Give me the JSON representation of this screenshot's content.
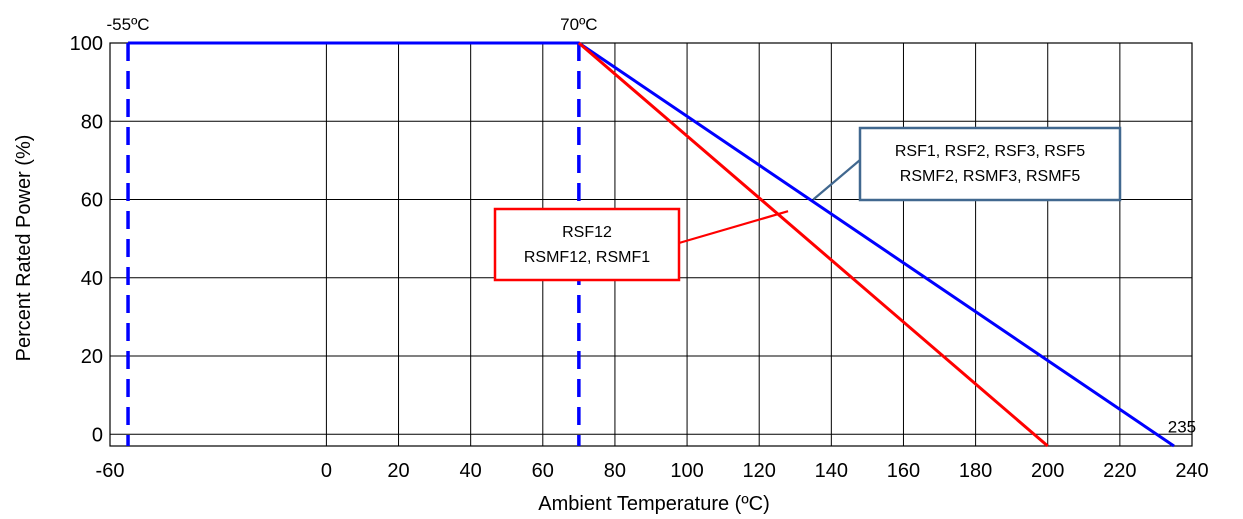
{
  "chart_data": {
    "type": "line",
    "xlabel": "Ambient Temperature (ºC)",
    "ylabel": "Percent Rated Power (%)",
    "xlim": [
      -60,
      240
    ],
    "ylim": [
      -3,
      100
    ],
    "x_ticks": [
      -60,
      0,
      20,
      40,
      60,
      80,
      100,
      120,
      140,
      160,
      180,
      200,
      220,
      240
    ],
    "x_tick_labels": [
      "-60",
      "0",
      "20",
      "40",
      "60",
      "80",
      "100",
      "120",
      "140",
      "160",
      "180",
      "200",
      "220",
      "240"
    ],
    "y_ticks": [
      0,
      20,
      40,
      60,
      80,
      100
    ],
    "y_tick_labels": [
      "0",
      "20",
      "40",
      "60",
      "80",
      "100"
    ],
    "grid": true,
    "series": [
      {
        "name": "RSF1, RSF2, RSF3, RSF5 RSMF2, RSMF3, RSMF5",
        "color": "#0000ff",
        "points": [
          [
            -55,
            100
          ],
          [
            70,
            100
          ],
          [
            235,
            -3
          ]
        ]
      },
      {
        "name": "RSF12 RSMF12, RSMF1",
        "color": "#ff0000",
        "points": [
          [
            70,
            100
          ],
          [
            200,
            -3
          ]
        ]
      }
    ],
    "reference_lines": [
      {
        "x": -55,
        "label": "-55ºC",
        "color": "#0000ff",
        "style": "dashed"
      },
      {
        "x": 70,
        "label": "70ºC",
        "color": "#0000ff",
        "style": "dashed"
      }
    ],
    "end_label": {
      "x": 235,
      "text": "235"
    },
    "callouts": [
      {
        "lines": [
          "RSF1, RSF2, RSF3, RSF5",
          "RSMF2, RSMF3, RSMF5"
        ],
        "border_color": "#41688f",
        "target": [
          135,
          60
        ]
      },
      {
        "lines": [
          "RSF12",
          "RSMF12, RSMF1"
        ],
        "border_color": "#ff0000",
        "target": [
          128,
          57
        ]
      }
    ]
  }
}
